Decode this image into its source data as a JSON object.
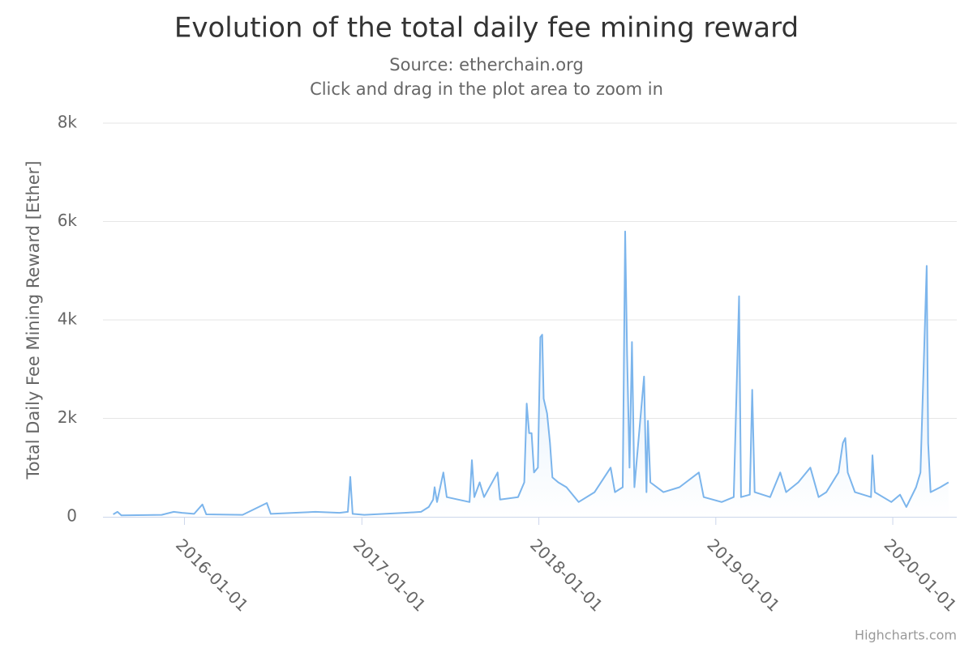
{
  "chart_data": {
    "type": "line",
    "title": "Evolution of the total daily fee mining reward",
    "subtitle": [
      "Source: etherchain.org",
      "Click and drag in the plot area to zoom in"
    ],
    "y_label": "Total Daily Fee Mining Reward [Ether]",
    "credits": "Highcharts.com",
    "xlim": [
      "2015-07-17",
      "2020-05-12"
    ],
    "xticks": [
      "2016-01-01",
      "2017-01-01",
      "2018-01-01",
      "2019-01-01",
      "2020-01-01"
    ],
    "ylim": [
      0,
      8000
    ],
    "yticks": [
      0,
      {
        "value": 2000,
        "label": "2k"
      },
      {
        "value": 4000,
        "label": "4k"
      },
      {
        "value": 6000,
        "label": "6k"
      },
      {
        "value": 8000,
        "label": "8k"
      }
    ],
    "grid": true,
    "series": [
      {
        "name": "Total Daily Fee Mining Reward",
        "color": "#7cb5ec",
        "x": [
          "2015-08-07",
          "2015-08-16",
          "2015-08-24",
          "2015-11-15",
          "2015-12-10",
          "2015-12-27",
          "2016-01-21",
          "2016-02-07",
          "2016-02-15",
          "2016-04-30",
          "2016-06-19",
          "2016-06-27",
          "2016-09-27",
          "2016-11-16",
          "2016-12-03",
          "2016-12-08",
          "2016-12-13",
          "2017-01-06",
          "2017-03-30",
          "2017-05-03",
          "2017-05-19",
          "2017-05-28",
          "2017-05-31",
          "2017-06-05",
          "2017-06-18",
          "2017-06-25",
          "2017-08-11",
          "2017-08-16",
          "2017-08-21",
          "2017-09-01",
          "2017-09-10",
          "2017-10-08",
          "2017-10-13",
          "2017-11-19",
          "2017-12-02",
          "2017-12-07",
          "2017-12-12",
          "2017-12-17",
          "2017-12-22",
          "2017-12-30",
          "2018-01-04",
          "2018-01-08",
          "2018-01-11",
          "2018-01-18",
          "2018-01-24",
          "2018-01-29",
          "2018-02-10",
          "2018-02-27",
          "2018-03-24",
          "2018-04-26",
          "2018-05-29",
          "2018-06-07",
          "2018-06-23",
          "2018-06-28",
          "2018-07-02",
          "2018-07-07",
          "2018-07-12",
          "2018-07-17",
          "2018-08-06",
          "2018-08-11",
          "2018-08-14",
          "2018-08-19",
          "2018-09-15",
          "2018-10-18",
          "2018-11-27",
          "2018-12-07",
          "2019-01-13",
          "2019-02-07",
          "2019-02-18",
          "2019-02-22",
          "2019-03-12",
          "2019-03-17",
          "2019-03-22",
          "2019-04-23",
          "2019-05-14",
          "2019-05-26",
          "2019-06-20",
          "2019-07-15",
          "2019-08-01",
          "2019-08-17",
          "2019-09-11",
          "2019-09-20",
          "2019-09-25",
          "2019-09-30",
          "2019-10-15",
          "2019-11-17",
          "2019-11-20",
          "2019-11-25",
          "2019-12-29",
          "2020-01-16",
          "2020-01-29",
          "2020-02-18",
          "2020-02-27",
          "2020-03-11",
          "2020-03-14",
          "2020-03-19",
          "2020-04-08",
          "2020-04-25"
        ],
        "values": [
          50,
          100,
          30,
          40,
          100,
          80,
          60,
          250,
          50,
          40,
          280,
          60,
          100,
          80,
          100,
          810,
          60,
          40,
          80,
          100,
          200,
          350,
          600,
          300,
          900,
          400,
          300,
          1150,
          400,
          700,
          400,
          900,
          350,
          400,
          700,
          2300,
          1700,
          1700,
          900,
          1000,
          3650,
          3700,
          2400,
          2100,
          1500,
          800,
          700,
          600,
          300,
          500,
          1000,
          500,
          600,
          5800,
          3300,
          1000,
          3550,
          600,
          2850,
          500,
          1950,
          700,
          500,
          600,
          900,
          400,
          300,
          400,
          4480,
          400,
          450,
          2580,
          500,
          400,
          900,
          500,
          700,
          1000,
          400,
          500,
          900,
          1500,
          1600,
          900,
          500,
          400,
          1250,
          500,
          300,
          450,
          200,
          600,
          900,
          5100,
          1500,
          500,
          600,
          700
        ]
      }
    ]
  }
}
